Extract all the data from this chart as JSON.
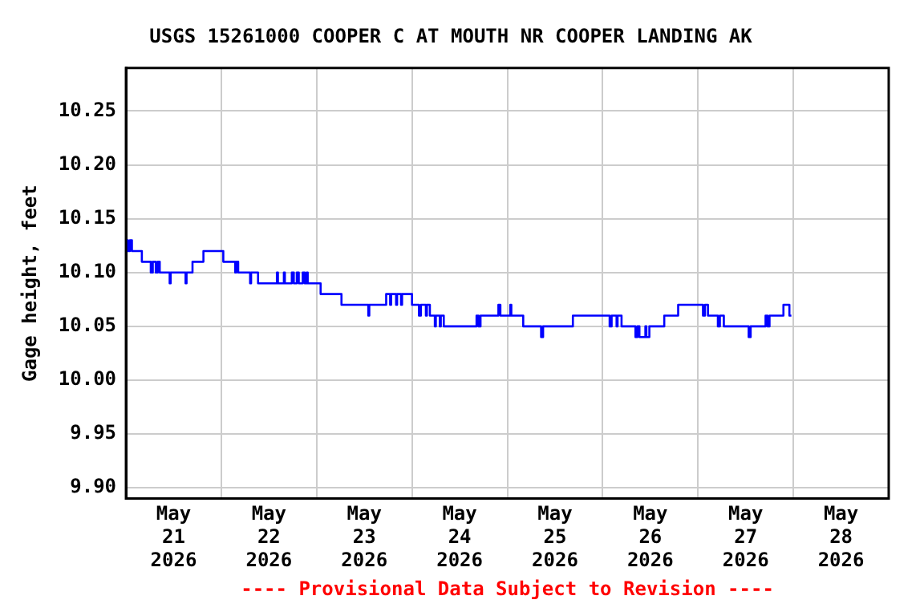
{
  "chart_data": {
    "type": "step",
    "title": "USGS 15261000 COOPER C AT MOUTH NR COOPER LANDING AK",
    "ylabel": "Gage height, feet",
    "annotations": [
      "---- Provisional Data Subject to Revision ----"
    ],
    "xlim": [
      "2026-05-21",
      "2026-05-29"
    ],
    "xticks": [
      {
        "value": "2026-05-21T12:00",
        "label": "May 21 2026"
      },
      {
        "value": "2026-05-22T12:00",
        "label": "May 22 2026"
      },
      {
        "value": "2026-05-23T12:00",
        "label": "May 23 2026"
      },
      {
        "value": "2026-05-24T12:00",
        "label": "May 24 2026"
      },
      {
        "value": "2026-05-25T12:00",
        "label": "May 25 2026"
      },
      {
        "value": "2026-05-26T12:00",
        "label": "May 26 2026"
      },
      {
        "value": "2026-05-27T12:00",
        "label": "May 27 2026"
      },
      {
        "value": "2026-05-28T12:00",
        "label": "May 28 2026"
      },
      {
        "value": "2026-05-22",
        "label": null
      },
      {
        "value": "2026-05-23",
        "label": null
      },
      {
        "value": "2026-05-24",
        "label": null
      },
      {
        "value": "2026-05-25",
        "label": null
      },
      {
        "value": "2026-05-26",
        "label": null
      },
      {
        "value": "2026-05-27",
        "label": null
      },
      {
        "value": "2026-05-28",
        "label": null
      }
    ],
    "ylim": [
      9.89,
      10.29
    ],
    "yticks": [
      {
        "value": 9.9,
        "label": "9.90"
      },
      {
        "value": 9.95,
        "label": "9.95"
      },
      {
        "value": 10.0,
        "label": "10.00"
      },
      {
        "value": 10.05,
        "label": "10.05"
      },
      {
        "value": 10.1,
        "label": "10.10"
      },
      {
        "value": 10.15,
        "label": "10.15"
      },
      {
        "value": 10.2,
        "label": "10.20"
      },
      {
        "value": 10.25,
        "label": "10.25"
      }
    ],
    "grid": true,
    "legend": false,
    "marker": "none",
    "line_style": "solid",
    "series": [
      {
        "color": "#0000ff",
        "x": [
          "2026-05-21T00:00",
          "2026-05-21T00:30",
          "2026-05-21T01:00",
          "2026-05-21T01:30",
          "2026-05-21T04:00",
          "2026-05-21T06:15",
          "2026-05-21T06:45",
          "2026-05-21T07:30",
          "2026-05-21T08:00",
          "2026-05-21T08:30",
          "2026-05-21T11:00",
          "2026-05-21T11:15",
          "2026-05-21T15:00",
          "2026-05-21T15:15",
          "2026-05-21T16:45",
          "2026-05-21T19:30",
          "2026-05-22T00:30",
          "2026-05-22T03:30",
          "2026-05-22T03:45",
          "2026-05-22T04:15",
          "2026-05-22T07:15",
          "2026-05-22T07:30",
          "2026-05-22T09:15",
          "2026-05-22T14:00",
          "2026-05-22T14:15",
          "2026-05-22T15:45",
          "2026-05-22T16:00",
          "2026-05-22T17:45",
          "2026-05-22T18:15",
          "2026-05-22T19:00",
          "2026-05-22T19:30",
          "2026-05-22T20:30",
          "2026-05-22T21:00",
          "2026-05-22T21:30",
          "2026-05-22T21:45",
          "2026-05-23T01:00",
          "2026-05-23T06:15",
          "2026-05-23T13:00",
          "2026-05-23T13:15",
          "2026-05-23T17:30",
          "2026-05-23T18:30",
          "2026-05-23T18:45",
          "2026-05-23T20:00",
          "2026-05-23T20:15",
          "2026-05-23T21:15",
          "2026-05-23T21:30",
          "2026-05-24T00:00",
          "2026-05-24T01:45",
          "2026-05-24T02:15",
          "2026-05-24T03:30",
          "2026-05-24T03:45",
          "2026-05-24T04:30",
          "2026-05-24T05:45",
          "2026-05-24T06:00",
          "2026-05-24T07:00",
          "2026-05-24T07:15",
          "2026-05-24T08:00",
          "2026-05-24T16:15",
          "2026-05-24T16:45",
          "2026-05-24T17:15",
          "2026-05-24T21:45",
          "2026-05-24T22:15",
          "2026-05-25T00:45",
          "2026-05-25T01:00",
          "2026-05-25T04:00",
          "2026-05-25T08:30",
          "2026-05-25T09:00",
          "2026-05-25T16:30",
          "2026-05-26T01:45",
          "2026-05-26T02:15",
          "2026-05-26T03:30",
          "2026-05-26T03:45",
          "2026-05-26T04:45",
          "2026-05-26T08:15",
          "2026-05-26T08:45",
          "2026-05-26T09:15",
          "2026-05-26T10:45",
          "2026-05-26T11:00",
          "2026-05-26T11:45",
          "2026-05-26T15:30",
          "2026-05-26T19:00",
          "2026-05-27T01:15",
          "2026-05-27T01:45",
          "2026-05-27T02:30",
          "2026-05-27T05:00",
          "2026-05-27T05:30",
          "2026-05-27T06:30",
          "2026-05-27T12:45",
          "2026-05-27T13:15",
          "2026-05-27T17:00",
          "2026-05-27T17:30",
          "2026-05-27T18:00",
          "2026-05-27T21:30",
          "2026-05-27T23:00",
          "2026-05-27T23:30"
        ],
        "values": [
          10.13,
          10.12,
          10.13,
          10.12,
          10.11,
          10.1,
          10.11,
          10.1,
          10.11,
          10.1,
          10.09,
          10.1,
          10.09,
          10.1,
          10.11,
          10.12,
          10.11,
          10.1,
          10.11,
          10.1,
          10.09,
          10.1,
          10.09,
          10.1,
          10.09,
          10.1,
          10.09,
          10.1,
          10.09,
          10.1,
          10.09,
          10.1,
          10.09,
          10.1,
          10.09,
          10.08,
          10.07,
          10.06,
          10.07,
          10.08,
          10.07,
          10.08,
          10.07,
          10.08,
          10.07,
          10.08,
          10.07,
          10.06,
          10.07,
          10.06,
          10.07,
          10.06,
          10.05,
          10.06,
          10.05,
          10.06,
          10.05,
          10.06,
          10.05,
          10.06,
          10.07,
          10.06,
          10.07,
          10.06,
          10.05,
          10.04,
          10.05,
          10.06,
          10.05,
          10.06,
          10.05,
          10.06,
          10.05,
          10.04,
          10.05,
          10.04,
          10.05,
          10.04,
          10.05,
          10.06,
          10.07,
          10.06,
          10.07,
          10.06,
          10.05,
          10.06,
          10.05,
          10.04,
          10.05,
          10.06,
          10.05,
          10.06,
          10.07,
          10.06,
          10.06
        ]
      }
    ]
  }
}
